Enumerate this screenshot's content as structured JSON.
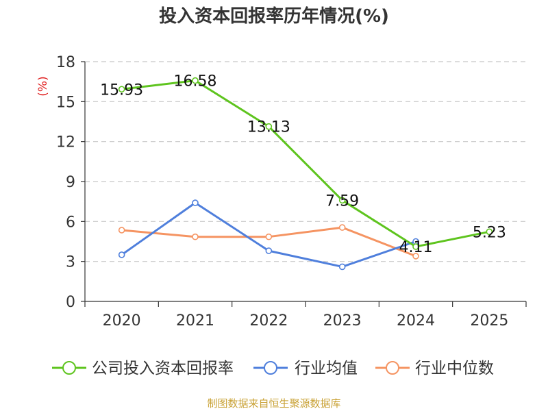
{
  "chart_data": {
    "type": "line",
    "title": "投入资本回报率历年情况(%)",
    "ylabel": "(%)",
    "xlabel": "",
    "categories": [
      "2020",
      "2021",
      "2022",
      "2023",
      "2024",
      "2025"
    ],
    "ylim": [
      0,
      18
    ],
    "yticks": [
      0,
      3,
      6,
      9,
      12,
      15,
      18
    ],
    "grid": true,
    "legend_position": "bottom",
    "series": [
      {
        "name": "公司投入资本回报率",
        "color": "#5ec41e",
        "values": [
          15.93,
          16.58,
          13.13,
          7.59,
          4.11,
          5.23
        ],
        "labels": [
          "15.93",
          "16.58",
          "13.13",
          "7.59",
          "4.11",
          "5.23"
        ]
      },
      {
        "name": "行业均值",
        "color": "#4f7fdc",
        "values": [
          3.5,
          7.4,
          3.8,
          2.6,
          4.5,
          null
        ]
      },
      {
        "name": "行业中位数",
        "color": "#f59462",
        "values": [
          5.35,
          4.85,
          4.85,
          5.55,
          3.4,
          null
        ]
      }
    ],
    "source": "制图数据来自恒生聚源数据库"
  }
}
